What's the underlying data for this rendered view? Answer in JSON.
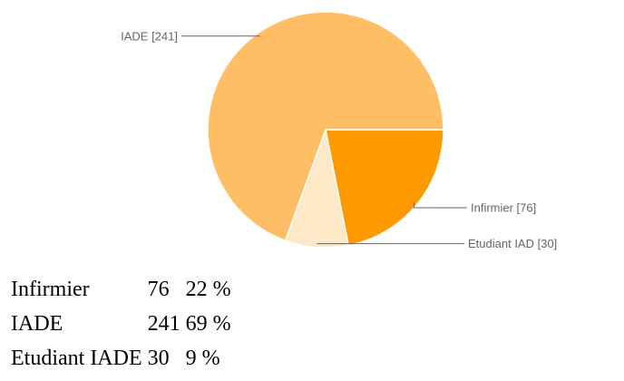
{
  "chart_data": {
    "type": "pie",
    "title": "",
    "slices": [
      {
        "label": "Infirmier",
        "value": 76,
        "callout": "Infirmier [76]",
        "color": "#ff9900"
      },
      {
        "label": "Etudiant IAD",
        "value": 30,
        "callout": "Etudiant IAD [30]",
        "color": "#fde9c7"
      },
      {
        "label": "IADE",
        "value": 241,
        "callout": "IADE [241]",
        "color": "#ffbd66"
      }
    ],
    "start_angle_deg": 90,
    "direction": "clockwise"
  },
  "summary_table": {
    "rows": [
      {
        "name": "Infirmier",
        "count": "76",
        "percent": "22 %"
      },
      {
        "name": "IADE",
        "count": "241",
        "percent": "69 %"
      },
      {
        "name": "Etudiant IADE",
        "count": "30",
        "percent": "9 %"
      }
    ]
  }
}
